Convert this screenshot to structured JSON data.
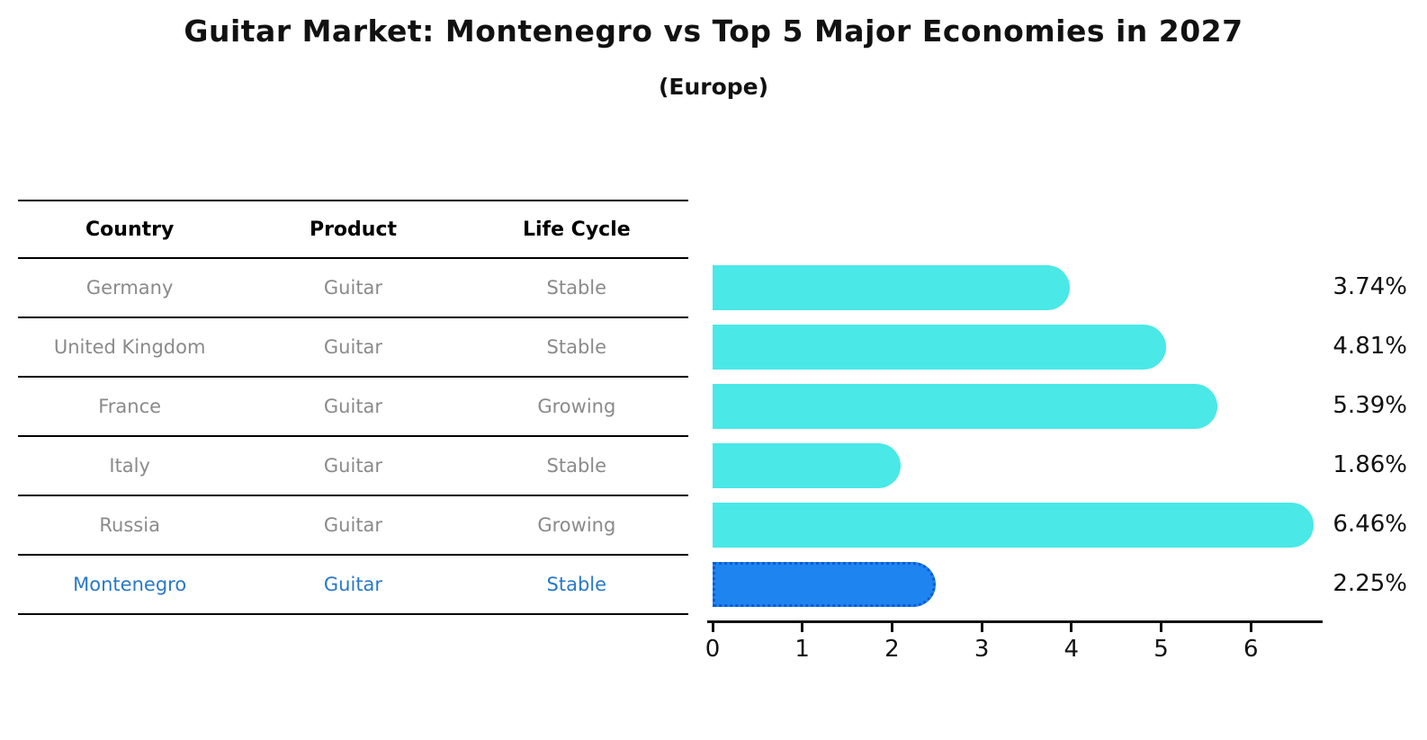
{
  "header": {
    "title": "Guitar Market: Montenegro vs Top 5 Major Economies in 2027",
    "subtitle": "(Europe)"
  },
  "table": {
    "headers": [
      "Country",
      "Product",
      "Life Cycle"
    ]
  },
  "colors": {
    "bar": "#4AE8E7",
    "highlight_bar": "#1E84F0",
    "highlight_bar_border": "#0C5BD6",
    "highlight_text": "#2979C9",
    "row_text": "#8a8a8a",
    "axis_text": "#111111"
  },
  "chart_data": {
    "type": "bar",
    "orientation": "horizontal",
    "title": "Guitar Market: Montenegro vs Top 5 Major Economies in 2027",
    "subtitle": "(Europe)",
    "categories": [
      "Germany",
      "United Kingdom",
      "France",
      "Italy",
      "Russia",
      "Montenegro"
    ],
    "products": [
      "Guitar",
      "Guitar",
      "Guitar",
      "Guitar",
      "Guitar",
      "Guitar"
    ],
    "life_cycles": [
      "Stable",
      "Stable",
      "Growing",
      "Stable",
      "Growing",
      "Stable"
    ],
    "values": [
      3.74,
      4.81,
      5.39,
      1.86,
      6.46,
      2.25
    ],
    "value_labels": [
      "3.74%",
      "4.81%",
      "5.39%",
      "1.86%",
      "6.46%",
      "2.25%"
    ],
    "highlight_index": 5,
    "xlim": [
      0,
      6.8
    ],
    "x_ticks": [
      "0",
      "1",
      "2",
      "3",
      "4",
      "5",
      "6"
    ],
    "grid": false,
    "legend": false
  }
}
